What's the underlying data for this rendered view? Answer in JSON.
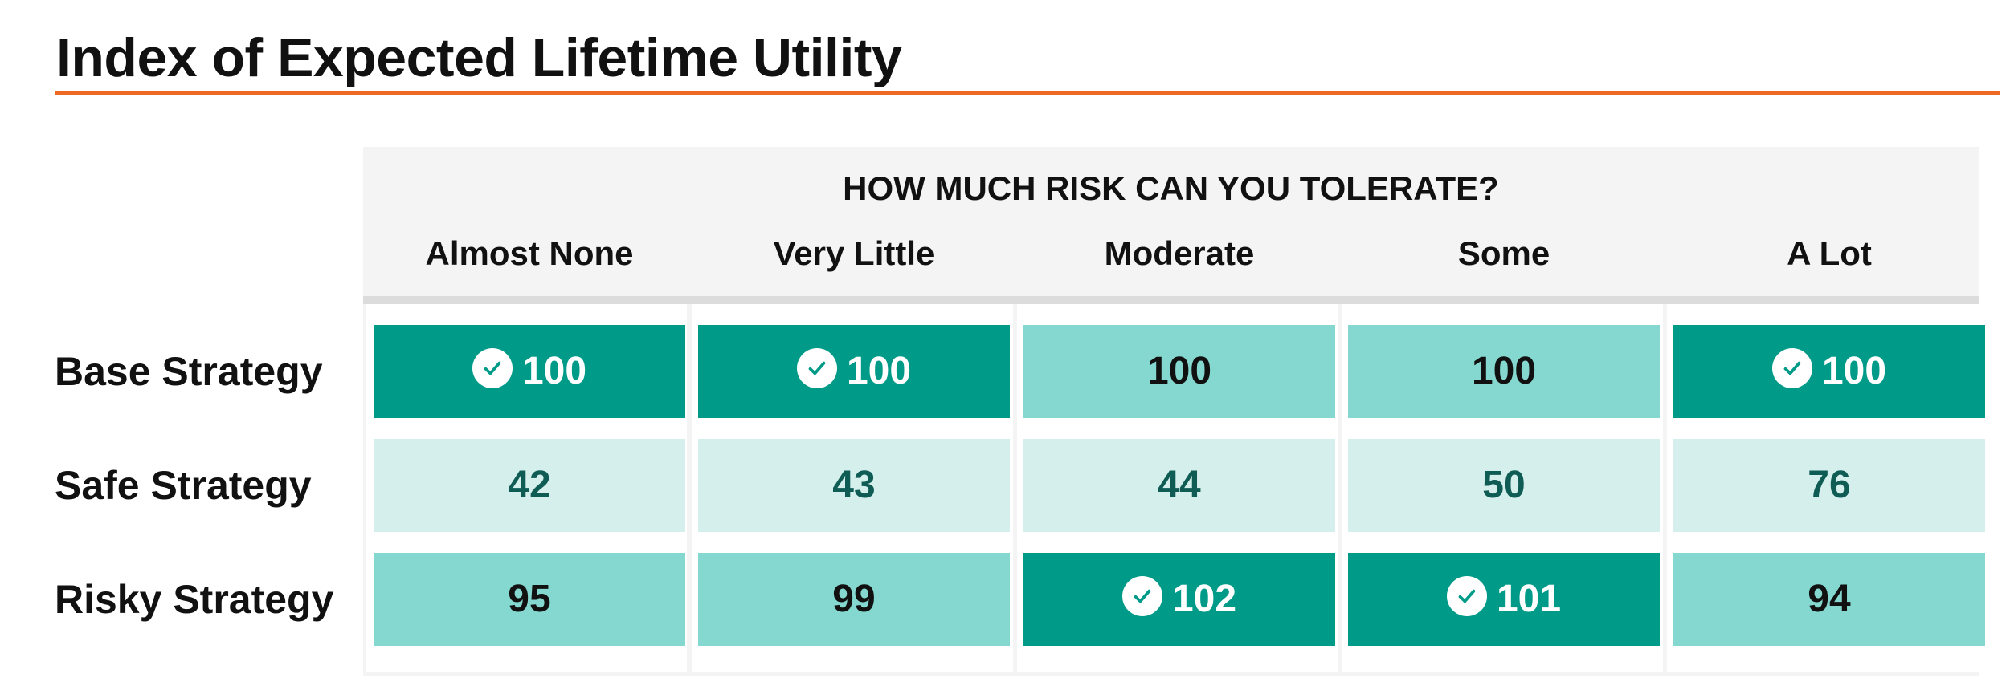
{
  "chart_data": {
    "type": "table",
    "title": "Index of Expected Lifetime Utility",
    "column_group_label": "HOW MUCH RISK CAN YOU TOLERATE?",
    "columns": [
      "Almost None",
      "Very Little",
      "Moderate",
      "Some",
      "A Lot"
    ],
    "rows": [
      {
        "label": "Base Strategy",
        "values": [
          100,
          100,
          100,
          100,
          100
        ],
        "best": [
          true,
          true,
          false,
          false,
          true
        ]
      },
      {
        "label": "Safe Strategy",
        "values": [
          42,
          43,
          44,
          50,
          76
        ],
        "best": [
          false,
          false,
          false,
          false,
          false
        ]
      },
      {
        "label": "Risky Strategy",
        "values": [
          95,
          99,
          102,
          101,
          94
        ],
        "best": [
          false,
          false,
          true,
          true,
          false
        ]
      }
    ],
    "best_marker_icon": "check-circle-icon",
    "color_scale": "higher values shown in darker teal; best choice per column marked with a check"
  },
  "colors": {
    "accent_rule": "#ee6a24",
    "best_fill": "#009b88",
    "high_fill": "#84d8cf",
    "low_fill": "#d5efed",
    "best_text": "#ffffff",
    "high_text": "#111111",
    "low_text": "#0f5c55"
  }
}
